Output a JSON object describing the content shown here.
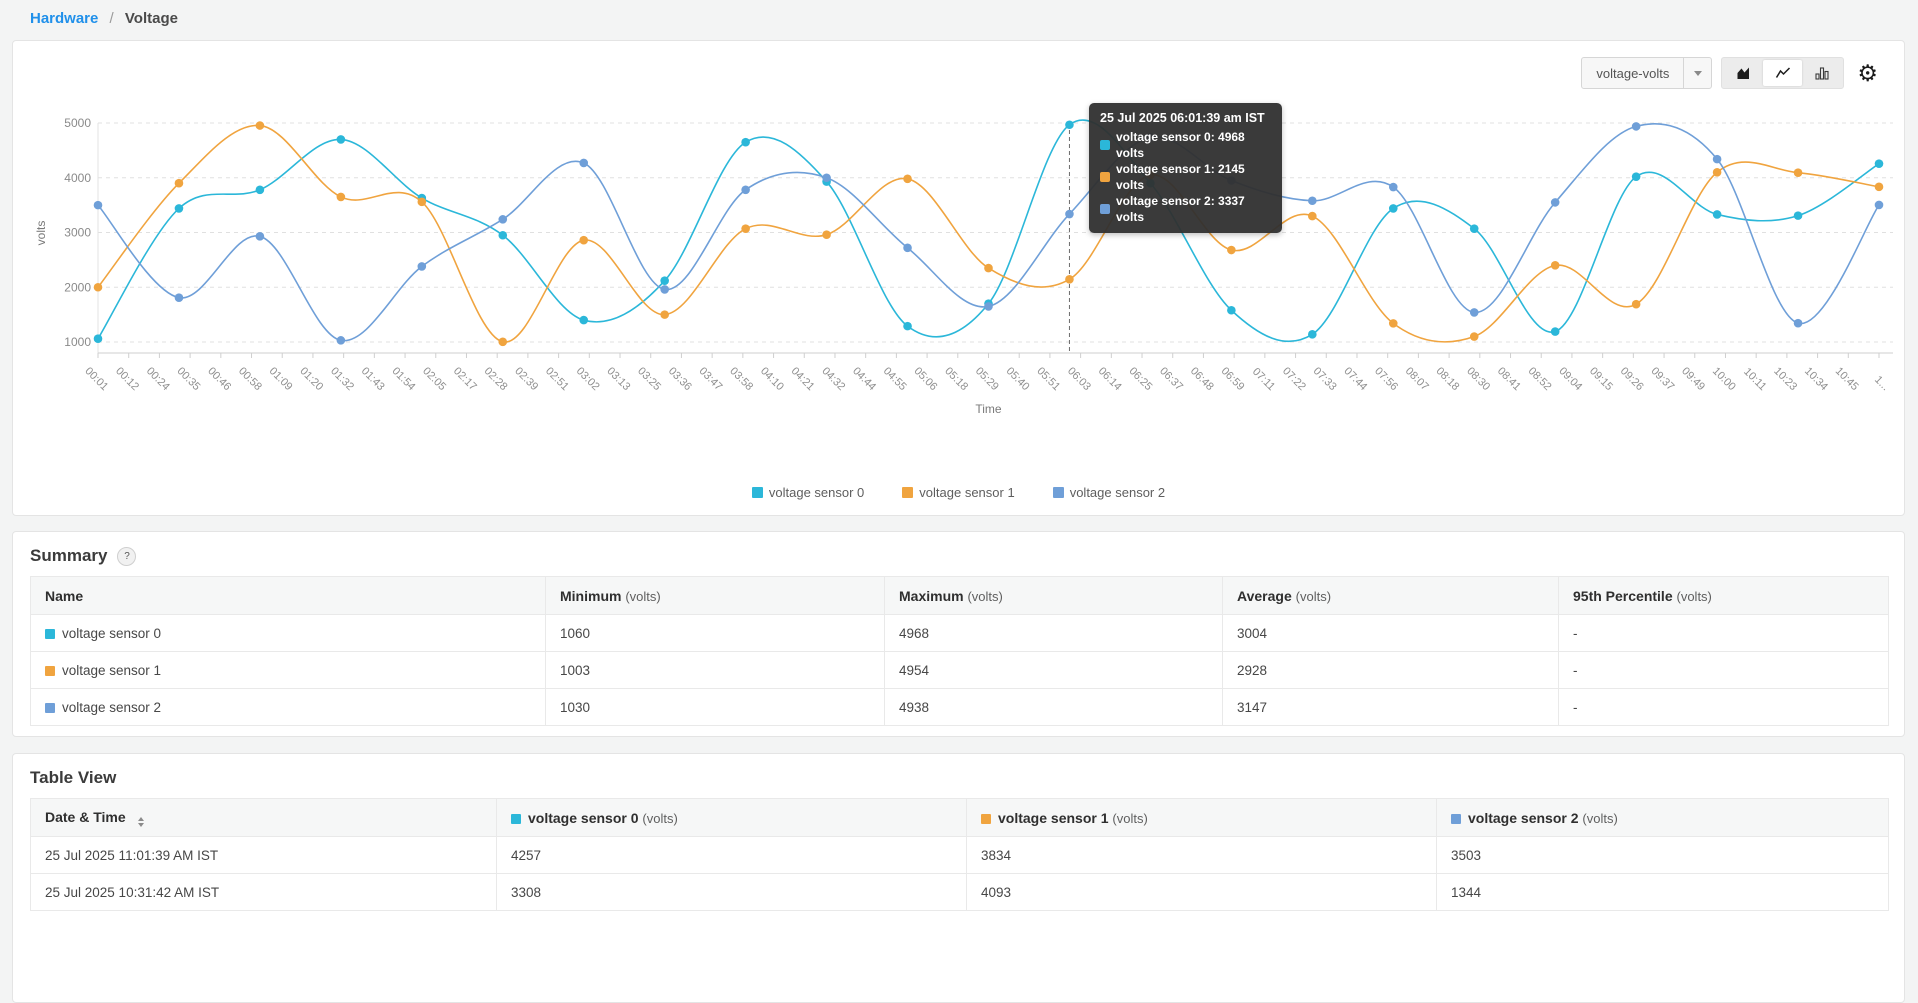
{
  "colors": {
    "sensor0": "#2bb7d9",
    "sensor1": "#f0a43f",
    "sensor2": "#6f9fd8",
    "accent_link": "#2090ea"
  },
  "breadcrumb": {
    "link": "Hardware",
    "separator": "/",
    "current": "Voltage"
  },
  "chart_panel": {
    "metric_select": {
      "value": "voltage-volts"
    },
    "chart_type_buttons": {
      "area": "area-chart",
      "line": "line-chart",
      "bar": "bar-chart"
    },
    "active_chart_type": "line-chart",
    "tooltip": {
      "title": "25 Jul 2025 06:01:39 am IST",
      "point_index": 12,
      "rows": [
        {
          "text": "voltage sensor 0: 4968 volts",
          "color": "#2bb7d9"
        },
        {
          "text": "voltage sensor 1: 2145 volts",
          "color": "#f0a43f"
        },
        {
          "text": "voltage sensor 2: 3337 volts",
          "color": "#6f9fd8"
        }
      ]
    },
    "chart_data": {
      "type": "line",
      "title": "",
      "xlabel": "Time",
      "ylabel": "volts",
      "ylim": [
        1000,
        5000
      ],
      "yticks": [
        1000,
        2000,
        3000,
        4000,
        5000
      ],
      "grid": "horizontal-dashed",
      "legend_position": "bottom",
      "x": [
        "00:01",
        "00:31",
        "01:01",
        "01:31",
        "02:01",
        "02:31",
        "03:01",
        "03:31",
        "04:01",
        "04:31",
        "05:01",
        "05:31",
        "06:01",
        "06:31",
        "07:01",
        "07:31",
        "08:01",
        "08:31",
        "09:01",
        "09:31",
        "10:01",
        "10:31",
        "11:01"
      ],
      "x_tick_labels": [
        "00:01",
        "00:12",
        "00:24",
        "00:35",
        "00:46",
        "00:58",
        "01:09",
        "01:20",
        "01:32",
        "01:43",
        "01:54",
        "02:05",
        "02:17",
        "02:28",
        "02:39",
        "02:51",
        "03:02",
        "03:13",
        "03:25",
        "03:36",
        "03:47",
        "03:58",
        "04:10",
        "04:21",
        "04:32",
        "04:44",
        "04:55",
        "05:06",
        "05:18",
        "05:29",
        "05:40",
        "05:51",
        "06:03",
        "06:14",
        "06:25",
        "06:37",
        "06:48",
        "06:59",
        "07:11",
        "07:22",
        "07:33",
        "07:44",
        "07:56",
        "08:07",
        "08:18",
        "08:30",
        "08:41",
        "08:52",
        "09:04",
        "09:15",
        "09:26",
        "09:37",
        "09:49",
        "10:00",
        "10:11",
        "10:23",
        "10:34",
        "10:45",
        "1..."
      ],
      "series": [
        {
          "name": "voltage sensor 0",
          "color": "#2bb7d9",
          "values": [
            1060,
            3440,
            3780,
            4700,
            3630,
            2950,
            1400,
            2120,
            4650,
            3930,
            1290,
            1700,
            4968,
            3900,
            1580,
            1140,
            3440,
            3070,
            1190,
            4020,
            3330,
            3308,
            4257
          ]
        },
        {
          "name": "voltage sensor 1",
          "color": "#f0a43f",
          "values": [
            2000,
            3900,
            4954,
            3650,
            3560,
            1003,
            2860,
            1500,
            3070,
            2960,
            3980,
            2350,
            2145,
            4050,
            2680,
            3300,
            1340,
            1100,
            2400,
            1690,
            4100,
            4093,
            3834
          ]
        },
        {
          "name": "voltage sensor 2",
          "color": "#6f9fd8",
          "values": [
            3500,
            1810,
            2930,
            1030,
            2380,
            3240,
            4270,
            1960,
            3780,
            4000,
            2720,
            1650,
            3337,
            4740,
            3950,
            3580,
            3830,
            1540,
            3550,
            4938,
            4340,
            1344,
            3503
          ]
        }
      ]
    }
  },
  "summary": {
    "title": "Summary",
    "help_label": "?",
    "columns": [
      {
        "label": "Name",
        "unit": ""
      },
      {
        "label": "Minimum",
        "unit": "(volts)"
      },
      {
        "label": "Maximum",
        "unit": "(volts)"
      },
      {
        "label": "Average",
        "unit": "(volts)"
      },
      {
        "label": "95th Percentile",
        "unit": "(volts)"
      }
    ],
    "rows": [
      {
        "name": "voltage sensor 0",
        "color": "#2bb7d9",
        "min": "1060",
        "max": "4968",
        "avg": "3004",
        "p95": "-"
      },
      {
        "name": "voltage sensor 1",
        "color": "#f0a43f",
        "min": "1003",
        "max": "4954",
        "avg": "2928",
        "p95": "-"
      },
      {
        "name": "voltage sensor 2",
        "color": "#6f9fd8",
        "min": "1030",
        "max": "4938",
        "avg": "3147",
        "p95": "-"
      }
    ]
  },
  "table_view": {
    "title": "Table View",
    "columns": [
      {
        "label": "Date & Time",
        "unit": ""
      },
      {
        "label": "voltage sensor 0",
        "unit": "(volts)",
        "color": "#2bb7d9"
      },
      {
        "label": "voltage sensor 1",
        "unit": "(volts)",
        "color": "#f0a43f"
      },
      {
        "label": "voltage sensor 2",
        "unit": "(volts)",
        "color": "#6f9fd8"
      }
    ],
    "rows": [
      {
        "datetime": "25 Jul 2025 11:01:39 AM IST",
        "s0": "4257",
        "s1": "3834",
        "s2": "3503"
      },
      {
        "datetime": "25 Jul 2025 10:31:42 AM IST",
        "s0": "3308",
        "s1": "4093",
        "s2": "1344"
      }
    ]
  }
}
